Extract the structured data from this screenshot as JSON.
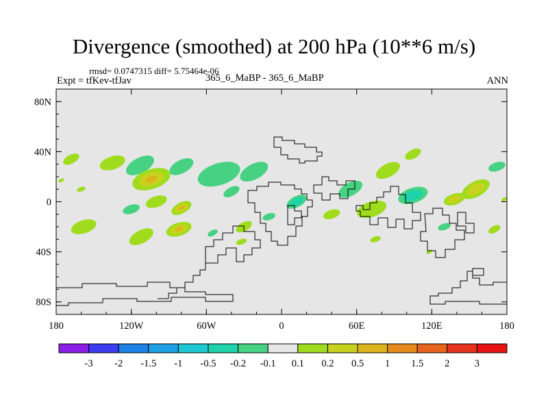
{
  "header": {
    "title": "Divergence (smoothed) at 200 hPa (10**6 m/s)",
    "stats": "rmsd= 0.0747315 diff= 5.75464e-06",
    "expt": "Expt = tfKev-tfJav",
    "case": "365_6_MaBP - 365_6_MaBP",
    "season": "ANN"
  },
  "chart_data": {
    "type": "heatmap",
    "title": "Divergence (smoothed) at 200 hPa (10**6 m/s)",
    "xlabel": "",
    "ylabel": "",
    "xlim": [
      -180,
      180
    ],
    "ylim": [
      -90,
      90
    ],
    "x_ticks": [
      {
        "value": -180,
        "label": "180"
      },
      {
        "value": -120,
        "label": "120W"
      },
      {
        "value": -60,
        "label": "60W"
      },
      {
        "value": 0,
        "label": "0"
      },
      {
        "value": 60,
        "label": "60E"
      },
      {
        "value": 120,
        "label": "120E"
      },
      {
        "value": 180,
        "label": "180"
      }
    ],
    "y_ticks": [
      {
        "value": 80,
        "label": "80N"
      },
      {
        "value": 40,
        "label": "40N"
      },
      {
        "value": 0,
        "label": "0"
      },
      {
        "value": -40,
        "label": "40S"
      },
      {
        "value": -80,
        "label": "80S"
      }
    ],
    "colorbar": {
      "labels": [
        "-3",
        "-2",
        "-1.5",
        "-1",
        "-0.5",
        "-0.2",
        "-0.1",
        "0.1",
        "0.2",
        "0.5",
        "1",
        "1.5",
        "2",
        "3"
      ],
      "colors": [
        "#8c1ee6",
        "#3c3cf0",
        "#1e82e6",
        "#1ea0e6",
        "#1ec8d2",
        "#1ed2aa",
        "#46d282",
        "#e6e6e6",
        "#a0dc1e",
        "#c8d21e",
        "#dcb41e",
        "#e68c1e",
        "#e6641e",
        "#e6321e",
        "#e61414"
      ]
    },
    "background_color": "#e6e6e6",
    "blobs": [
      {
        "lon": -168,
        "lat": 34,
        "level": 1,
        "size": 8
      },
      {
        "lon": -135,
        "lat": 31,
        "level": 1,
        "size": 12
      },
      {
        "lon": -113,
        "lat": 29,
        "level": -1,
        "size": 14
      },
      {
        "lon": -104,
        "lat": 18,
        "level": 3,
        "size": 18
      },
      {
        "lon": -80,
        "lat": 28,
        "level": -1,
        "size": 12
      },
      {
        "lon": -50,
        "lat": 22,
        "level": -1,
        "size": 20
      },
      {
        "lon": -22,
        "lat": 24,
        "level": -1,
        "size": 14
      },
      {
        "lon": -160,
        "lat": 10,
        "level": 1,
        "size": 4
      },
      {
        "lon": -176,
        "lat": 17,
        "level": 1,
        "size": 3
      },
      {
        "lon": -100,
        "lat": 0,
        "level": 1,
        "size": 10
      },
      {
        "lon": -80,
        "lat": -5,
        "level": 3,
        "size": 10
      },
      {
        "lon": -120,
        "lat": -6,
        "level": -1,
        "size": 8
      },
      {
        "lon": -40,
        "lat": 8,
        "level": -1,
        "size": 8
      },
      {
        "lon": -158,
        "lat": -20,
        "level": 1,
        "size": 12
      },
      {
        "lon": -112,
        "lat": -28,
        "level": 1,
        "size": 12
      },
      {
        "lon": -82,
        "lat": -22,
        "level": 3,
        "size": 12
      },
      {
        "lon": -30,
        "lat": -20,
        "level": 1,
        "size": 8
      },
      {
        "lon": -10,
        "lat": -12,
        "level": -1,
        "size": 6
      },
      {
        "lon": -55,
        "lat": -25,
        "level": -1,
        "size": 5
      },
      {
        "lon": -32,
        "lat": -32,
        "level": 1,
        "size": 5
      },
      {
        "lon": 12,
        "lat": 0,
        "level": -2,
        "size": 10
      },
      {
        "lon": 40,
        "lat": -10,
        "level": 1,
        "size": 8
      },
      {
        "lon": 55,
        "lat": 10,
        "level": -1,
        "size": 12
      },
      {
        "lon": 72,
        "lat": -6,
        "level": 1,
        "size": 14
      },
      {
        "lon": 85,
        "lat": 25,
        "level": 1,
        "size": 12
      },
      {
        "lon": 105,
        "lat": 5,
        "level": -2,
        "size": 14
      },
      {
        "lon": 105,
        "lat": 38,
        "level": 1,
        "size": 8
      },
      {
        "lon": 138,
        "lat": 2,
        "level": 2,
        "size": 10
      },
      {
        "lon": 155,
        "lat": 10,
        "level": 2,
        "size": 14
      },
      {
        "lon": 172,
        "lat": 28,
        "level": -1,
        "size": 8
      },
      {
        "lon": 170,
        "lat": -22,
        "level": 1,
        "size": 6
      },
      {
        "lon": 130,
        "lat": -20,
        "level": -1,
        "size": 6
      },
      {
        "lon": 178,
        "lat": 2,
        "level": 1,
        "size": 3
      },
      {
        "lon": 75,
        "lat": -30,
        "level": 1,
        "size": 5
      },
      {
        "lon": 118,
        "lat": -40,
        "level": 1,
        "size": 3
      }
    ]
  }
}
